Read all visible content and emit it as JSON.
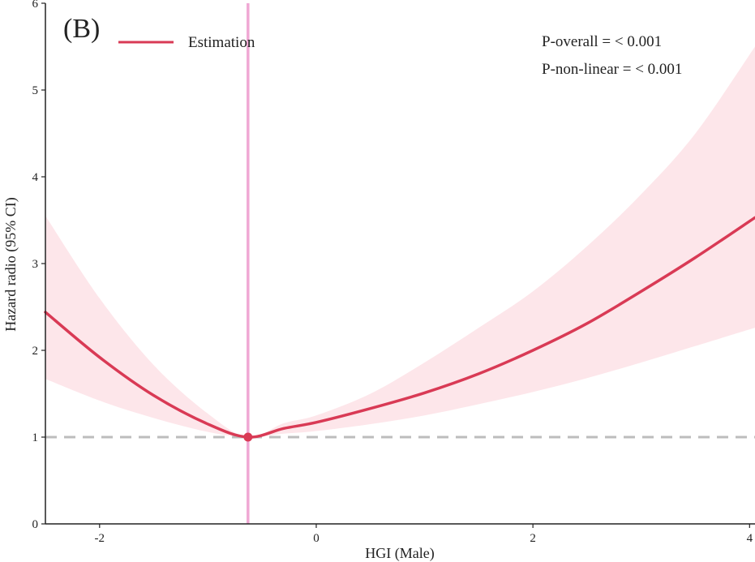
{
  "chart_data": {
    "type": "line",
    "panel_label": "(B)",
    "xlabel": "HGI (Male)",
    "ylabel": "Hazard  radio (95% CI)",
    "xlim": [
      -2.5,
      4.05
    ],
    "ylim": [
      0,
      6
    ],
    "x_ticks": [
      -2,
      0,
      2,
      4
    ],
    "x_tick_labels": [
      "-2",
      "0",
      "2",
      "4"
    ],
    "y_ticks": [
      0,
      1,
      2,
      3,
      4,
      5,
      6
    ],
    "y_tick_labels": [
      "0",
      "1",
      "2",
      "3",
      "4",
      "5",
      "6"
    ],
    "grid": false,
    "legend": {
      "position": "top-left",
      "entries": [
        "Estimation"
      ]
    },
    "annotations": [
      "P-overall = < 0.001",
      "P-non-linear = < 0.001"
    ],
    "reference_line_y": 1,
    "reference_x": -0.63,
    "reference_point": {
      "x": -0.63,
      "y": 1.0
    },
    "series": [
      {
        "name": "Estimation",
        "x": [
          -2.5,
          -2.0,
          -1.5,
          -1.0,
          -0.63,
          -0.3,
          0.0,
          0.5,
          1.0,
          1.5,
          2.0,
          2.5,
          3.0,
          3.5,
          4.05
        ],
        "y": [
          2.44,
          1.92,
          1.48,
          1.15,
          1.0,
          1.1,
          1.17,
          1.33,
          1.51,
          1.73,
          2.0,
          2.31,
          2.68,
          3.07,
          3.53
        ],
        "lower": [
          1.67,
          1.42,
          1.22,
          1.06,
          1.0,
          1.04,
          1.07,
          1.15,
          1.25,
          1.38,
          1.52,
          1.68,
          1.86,
          2.05,
          2.26
        ],
        "upper": [
          3.55,
          2.6,
          1.83,
          1.27,
          1.0,
          1.16,
          1.25,
          1.5,
          1.86,
          2.26,
          2.68,
          3.2,
          3.8,
          4.5,
          5.5
        ]
      }
    ],
    "colors": {
      "line": "#d93a55",
      "band": "#fde6ea",
      "vline": "#f0a8d4",
      "refline": "#bdbdbd",
      "axis": "#222222"
    }
  }
}
